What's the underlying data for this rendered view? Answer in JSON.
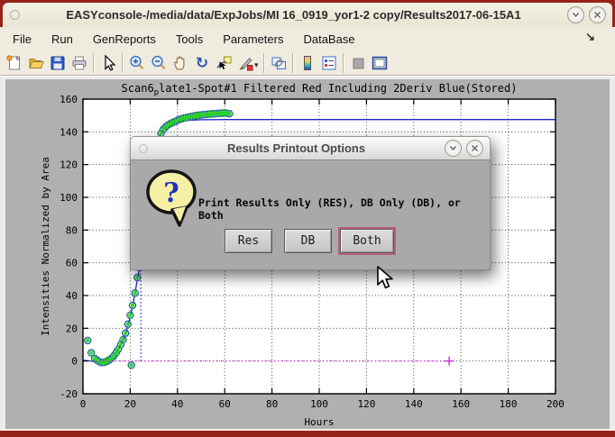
{
  "window": {
    "title": "EASYconsole-/media/data/ExpJobs/MI 16_0919_yor1-2 copy/Results2017-06-15A1",
    "controls": [
      "minimize",
      "close"
    ]
  },
  "menu": {
    "items": [
      "File",
      "Run",
      "GenReports",
      "Tools",
      "Parameters",
      "DataBase"
    ],
    "undock_arrow": "↘"
  },
  "toolbar": {
    "groups": [
      [
        "new-figure",
        "open-file",
        "save-figure",
        "print-figure"
      ],
      [
        "pointer"
      ],
      [
        "zoom-in",
        "zoom-out",
        "pan",
        "rotate-3d",
        "data-cursor",
        "brush"
      ],
      [
        "link-plot"
      ],
      [
        "insert-colorbar",
        "insert-legend"
      ],
      [
        "hide-plot-tools",
        "show-plot-tools"
      ]
    ]
  },
  "dialog": {
    "title": "Results Printout Options",
    "icon": "question-bubble",
    "message": "Print Results Only (RES), DB Only (DB), or Both",
    "buttons": [
      "Res",
      "DB",
      "Both"
    ],
    "focused_button": "Both",
    "controls": [
      "minimize",
      "close"
    ]
  },
  "chart_data": {
    "type": "line+scatter",
    "title": {
      "pre": "Scan6",
      "sub": "p",
      "post": "late1-Spot#1 Filtered Red Including 2Deriv Blue(Stored)"
    },
    "xlabel": "Hours",
    "ylabel": "Intensities Normalized by Area",
    "xlim": [
      0,
      200
    ],
    "ylim": [
      -20,
      160
    ],
    "xticks": [
      0,
      20,
      40,
      60,
      80,
      100,
      120,
      140,
      160,
      180,
      200
    ],
    "yticks": [
      -20,
      0,
      20,
      40,
      60,
      80,
      100,
      120,
      140,
      160
    ],
    "grid": true,
    "colors": {
      "blue": "#2026c8",
      "green": "#2ad12a",
      "magenta": "#d428d4"
    },
    "series": [
      {
        "name": "filtered-fit-line",
        "type": "line",
        "color": "#2026c8",
        "points": [
          [
            0,
            0.5
          ],
          [
            3,
            0
          ],
          [
            5,
            -0.4
          ],
          [
            7,
            -0.8
          ],
          [
            8,
            -1
          ],
          [
            9,
            -0.8
          ],
          [
            10,
            -0.3
          ],
          [
            11,
            0.3
          ],
          [
            12,
            1.2
          ],
          [
            13,
            2.5
          ],
          [
            14,
            4.3
          ],
          [
            15,
            6.8
          ],
          [
            16,
            9.5
          ],
          [
            17,
            12.5
          ],
          [
            18,
            16.3
          ],
          [
            19,
            21.3
          ],
          [
            20,
            27
          ],
          [
            21,
            33.5
          ],
          [
            22,
            41
          ],
          [
            23,
            50
          ],
          [
            24,
            57
          ],
          [
            25,
            66
          ],
          [
            26,
            77
          ],
          [
            27,
            90
          ],
          [
            28,
            103
          ],
          [
            29,
            114
          ],
          [
            30,
            123
          ],
          [
            31,
            130
          ],
          [
            32,
            135
          ],
          [
            33,
            138.8
          ],
          [
            34,
            141.3
          ],
          [
            35,
            142.9
          ],
          [
            36,
            144
          ],
          [
            37,
            144.8
          ],
          [
            38,
            145.4
          ],
          [
            40,
            146.2
          ],
          [
            42,
            146.7
          ],
          [
            45,
            147.1
          ],
          [
            50,
            147.4
          ],
          [
            60,
            147.5
          ],
          [
            200,
            147.5
          ]
        ]
      },
      {
        "name": "measured-points",
        "type": "scatter",
        "marker": "circle+asterisk",
        "circle_color": "#2531cf",
        "asterisk_color": "#2ad12a",
        "points": [
          [
            2,
            12.5
          ],
          [
            3.5,
            5
          ],
          [
            5,
            1.5
          ],
          [
            6,
            0.5
          ],
          [
            7,
            -0.5
          ],
          [
            8,
            -1
          ],
          [
            9,
            -0.8
          ],
          [
            10,
            -0.3
          ],
          [
            11,
            0.5
          ],
          [
            12,
            1.5
          ],
          [
            13,
            3
          ],
          [
            14,
            5
          ],
          [
            15,
            7.2
          ],
          [
            16,
            10
          ],
          [
            17,
            13
          ],
          [
            18,
            17
          ],
          [
            19,
            22.5
          ],
          [
            20,
            28
          ],
          [
            20.5,
            -2.5
          ],
          [
            21,
            34
          ],
          [
            22,
            41.5
          ],
          [
            23,
            51
          ],
          [
            24,
            57
          ],
          [
            33,
            139
          ],
          [
            34,
            141.5
          ],
          [
            35,
            143
          ],
          [
            36,
            144.2
          ],
          [
            37,
            145
          ],
          [
            38,
            145.7
          ],
          [
            39,
            146.3
          ],
          [
            40,
            147
          ],
          [
            41,
            147.6
          ],
          [
            42,
            148.1
          ],
          [
            43,
            148.5
          ],
          [
            44,
            148.8
          ],
          [
            45,
            149.1
          ],
          [
            46,
            149.4
          ],
          [
            47,
            149.7
          ],
          [
            48,
            149.9
          ],
          [
            49,
            150.1
          ],
          [
            50,
            150.3
          ],
          [
            51,
            150.5
          ],
          [
            52,
            150.6
          ],
          [
            53,
            150.8
          ],
          [
            54,
            150.9
          ],
          [
            55,
            151
          ],
          [
            56,
            151.1
          ],
          [
            57,
            151.2
          ],
          [
            58,
            151.3
          ],
          [
            59,
            151.4
          ],
          [
            60,
            151.5
          ],
          [
            61,
            151.3
          ],
          [
            62,
            151.1
          ]
        ]
      },
      {
        "name": "2deriv-marker-line",
        "type": "vline-dotted",
        "color": "#2026c8",
        "x": 24.5,
        "y": [
          0,
          57.5
        ]
      },
      {
        "name": "baseline",
        "type": "hline-dotted",
        "color": "#d428d4",
        "y": 0,
        "x": [
          0,
          155
        ],
        "end_marker": "plus"
      }
    ]
  }
}
